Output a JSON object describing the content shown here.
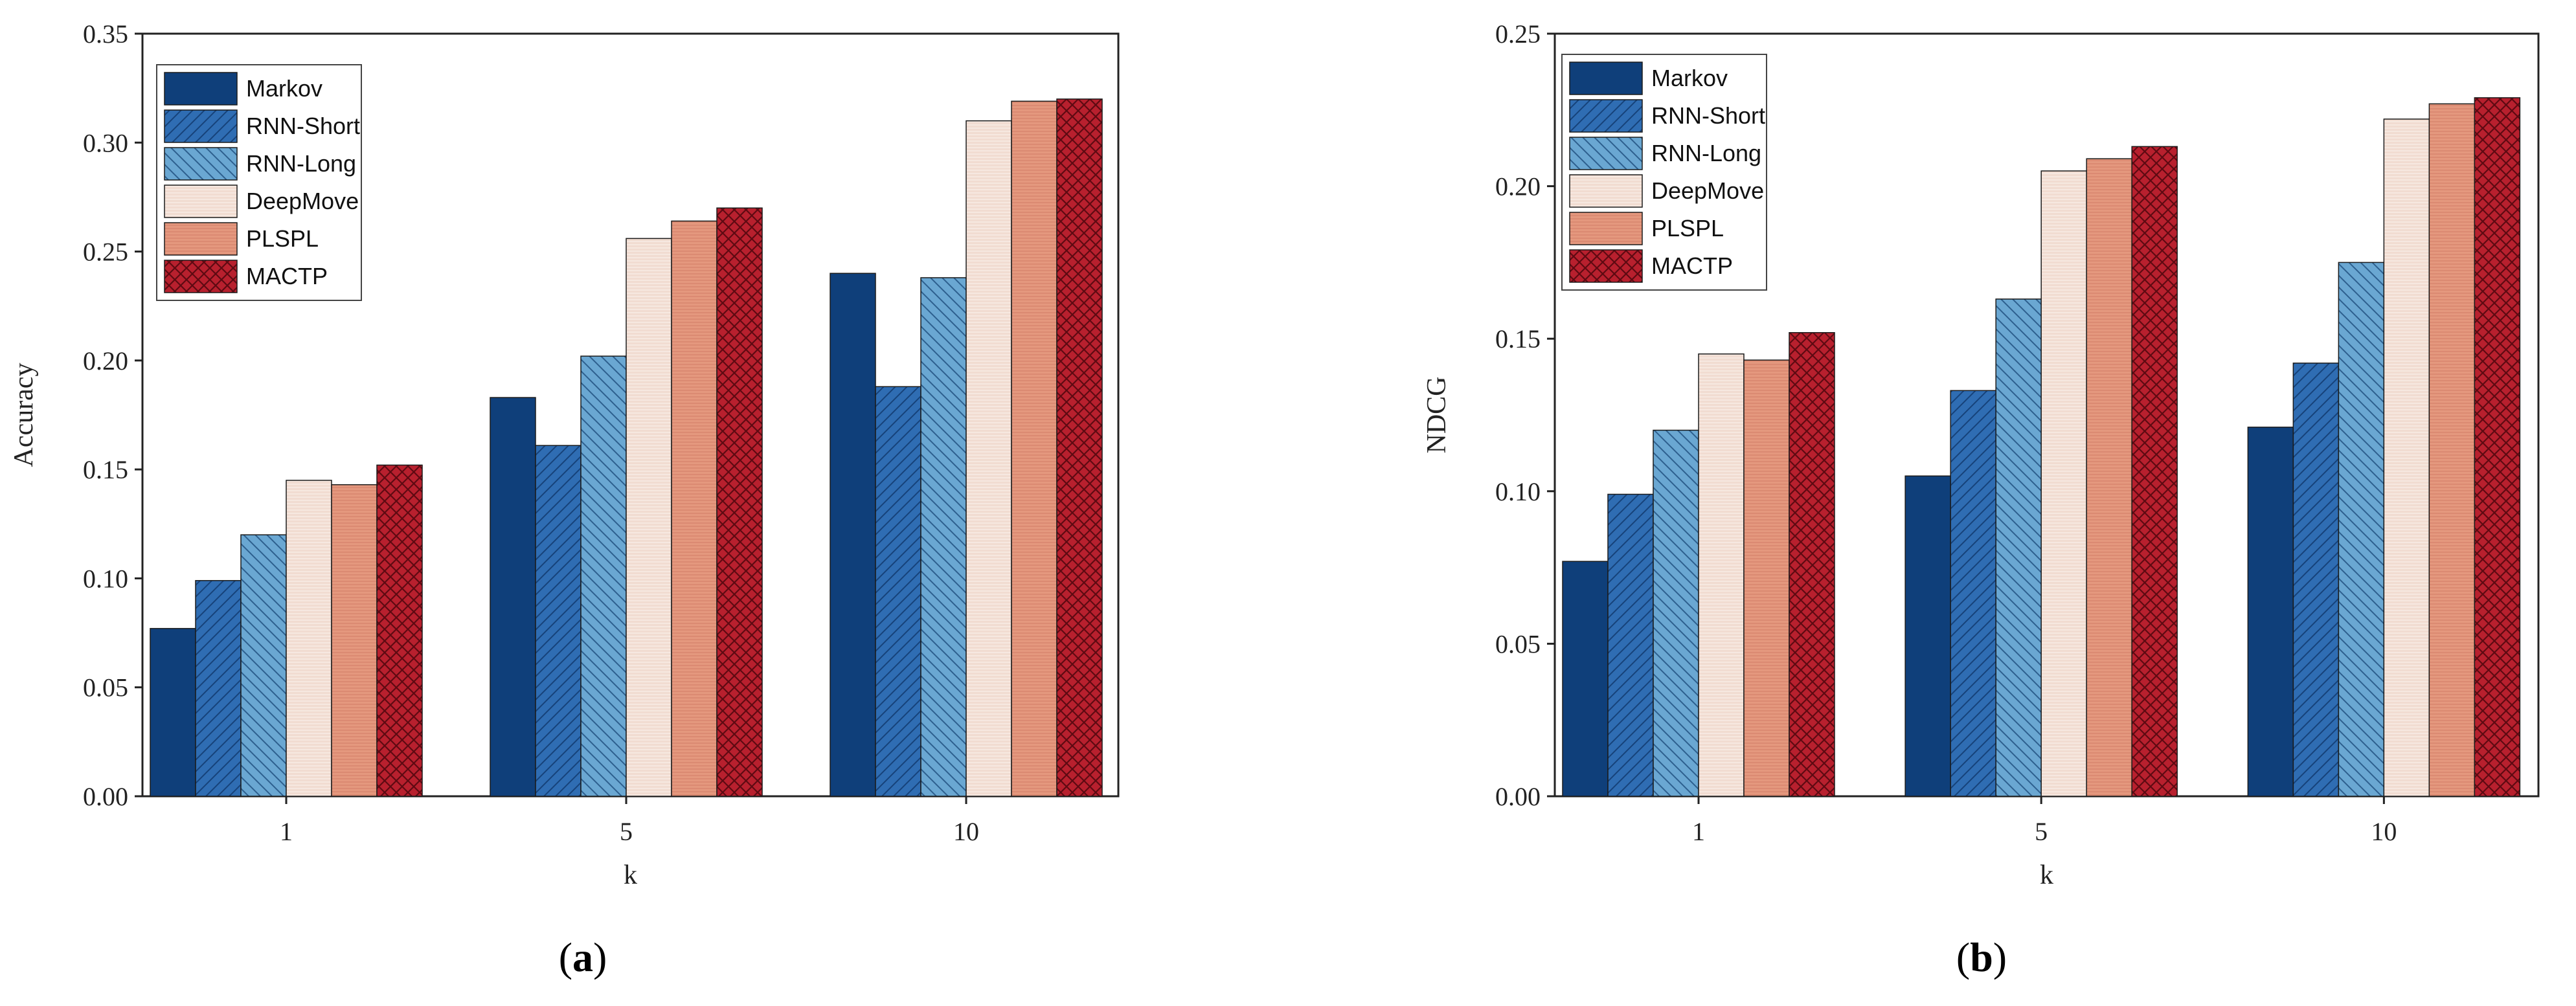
{
  "colors": {
    "Markov": "#0f3f7a",
    "RNN-Short": "#2f6db3",
    "RNN-Long": "#6aa7d2",
    "DeepMove": "#f1dcd1",
    "PLSPL": "#e4987e",
    "MACTP": "#b8202e"
  },
  "chart_data": [
    {
      "type": "bar",
      "panel_label": "(a)",
      "xlabel": "k",
      "ylabel": "Accuracy",
      "categories": [
        "1",
        "5",
        "10"
      ],
      "ylim": [
        0,
        0.35
      ],
      "yticks": [
        "0.00",
        "0.05",
        "0.10",
        "0.15",
        "0.20",
        "0.25",
        "0.30",
        "0.35"
      ],
      "legend_position": "top-left",
      "series": [
        {
          "name": "Markov",
          "values": [
            0.077,
            0.183,
            0.24
          ]
        },
        {
          "name": "RNN-Short",
          "values": [
            0.099,
            0.161,
            0.188
          ]
        },
        {
          "name": "RNN-Long",
          "values": [
            0.12,
            0.202,
            0.238
          ]
        },
        {
          "name": "DeepMove",
          "values": [
            0.145,
            0.256,
            0.31
          ]
        },
        {
          "name": "PLSPL",
          "values": [
            0.143,
            0.264,
            0.319
          ]
        },
        {
          "name": "MACTP",
          "values": [
            0.152,
            0.27,
            0.32
          ]
        }
      ]
    },
    {
      "type": "bar",
      "panel_label": "(b)",
      "xlabel": "k",
      "ylabel": "NDCG",
      "categories": [
        "1",
        "5",
        "10"
      ],
      "ylim": [
        0,
        0.25
      ],
      "yticks": [
        "0.00",
        "0.05",
        "0.10",
        "0.15",
        "0.20",
        "0.25"
      ],
      "legend_position": "top-left",
      "series": [
        {
          "name": "Markov",
          "values": [
            0.077,
            0.105,
            0.121
          ]
        },
        {
          "name": "RNN-Short",
          "values": [
            0.099,
            0.133,
            0.142
          ]
        },
        {
          "name": "RNN-Long",
          "values": [
            0.12,
            0.163,
            0.175
          ]
        },
        {
          "name": "DeepMove",
          "values": [
            0.145,
            0.205,
            0.222
          ]
        },
        {
          "name": "PLSPL",
          "values": [
            0.143,
            0.209,
            0.227
          ]
        },
        {
          "name": "MACTP",
          "values": [
            0.152,
            0.213,
            0.229
          ]
        }
      ]
    }
  ]
}
